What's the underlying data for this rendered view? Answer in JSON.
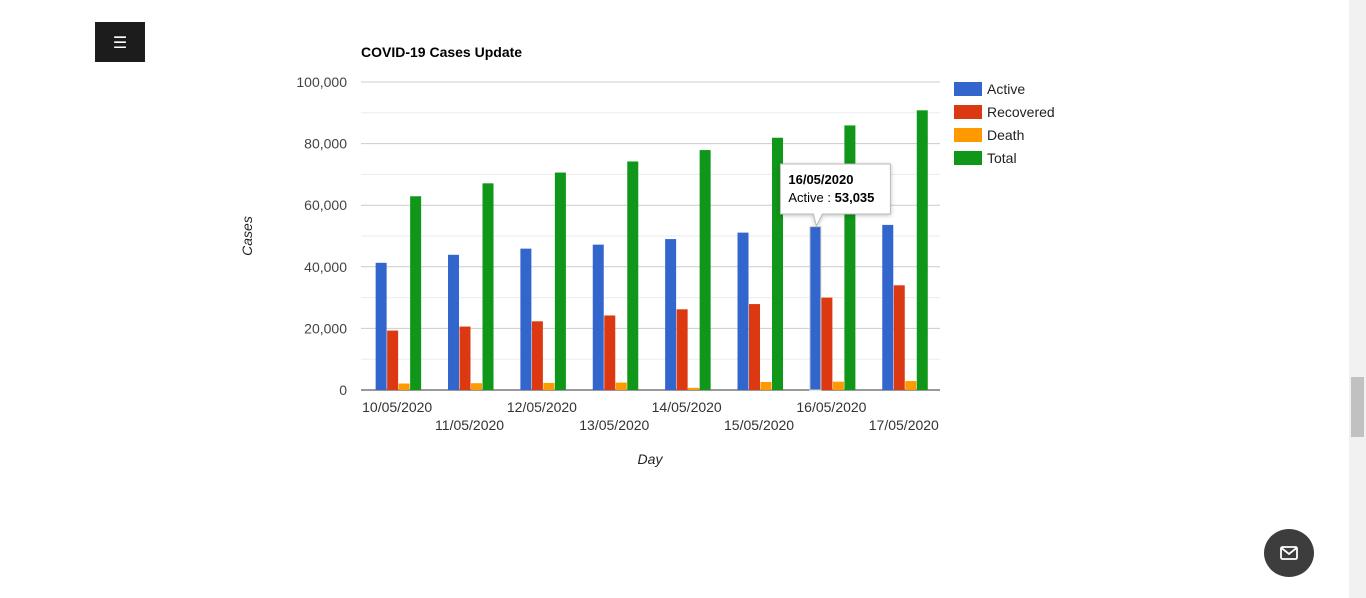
{
  "menu": {
    "icon": "hamburger-icon",
    "glyph": "☰"
  },
  "chart_data": {
    "type": "bar",
    "title": "COVID-19 Cases Update",
    "xlabel": "Day",
    "ylabel": "Cases",
    "ylim": [
      0,
      100000
    ],
    "yticks": [
      0,
      20000,
      40000,
      60000,
      80000,
      100000
    ],
    "ytick_labels": [
      "0",
      "20,000",
      "40,000",
      "60,000",
      "80,000",
      "100,000"
    ],
    "grid": true,
    "legend": "right",
    "categories": [
      "10/05/2020",
      "11/05/2020",
      "12/05/2020",
      "13/05/2020",
      "14/05/2020",
      "15/05/2020",
      "16/05/2020",
      "17/05/2020"
    ],
    "series": [
      {
        "name": "Active",
        "color": "#3366cc",
        "values": [
          41300,
          43900,
          45900,
          47200,
          49000,
          51100,
          53035,
          53600
        ]
      },
      {
        "name": "Recovered",
        "color": "#dc3912",
        "values": [
          19300,
          20600,
          22300,
          24200,
          26200,
          27900,
          30000,
          34000
        ]
      },
      {
        "name": "Death",
        "color": "#ff9900",
        "values": [
          2100,
          2200,
          2300,
          2400,
          700,
          2600,
          2700,
          2900
        ]
      },
      {
        "name": "Total",
        "color": "#109618",
        "values": [
          62900,
          67100,
          70600,
          74200,
          77900,
          81900,
          85900,
          90800
        ]
      }
    ],
    "tooltip": {
      "category": "16/05/2020",
      "series": "Active",
      "label": "Active : ",
      "value": "53,035"
    }
  },
  "contact": {
    "icon": "mail-icon"
  }
}
